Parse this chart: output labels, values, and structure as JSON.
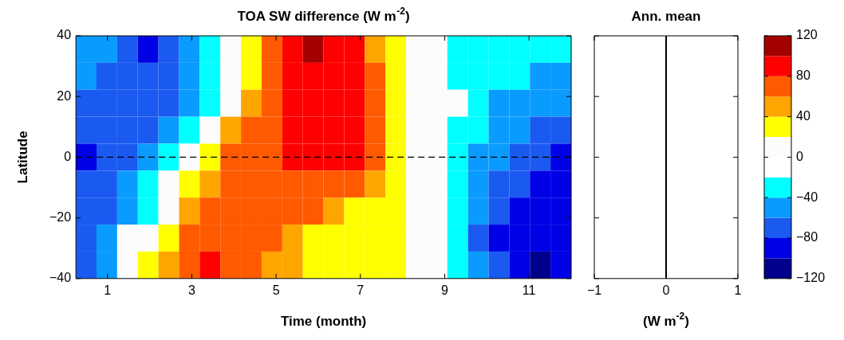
{
  "chart_data": [
    {
      "type": "heatmap",
      "title": "TOA SW difference (W m$^{-2}$)",
      "xlabel": "Time (month)",
      "ylabel": "Latitude",
      "xlim": [
        0.25,
        12
      ],
      "xticks": [
        1,
        3,
        5,
        7,
        9,
        11
      ],
      "ylim": [
        -40,
        40
      ],
      "yticks": [
        {
          "value": -40,
          "label": "−40"
        },
        {
          "value": -20,
          "label": "−20"
        },
        0,
        20,
        40
      ],
      "cells": [
        [
          -50,
          -50,
          -70,
          -90,
          -70,
          -50,
          -30,
          0,
          30,
          70,
          90,
          110,
          90,
          90,
          50,
          30,
          0,
          0,
          -30,
          -30,
          -30,
          -30,
          -30,
          -30
        ],
        [
          -50,
          -70,
          -70,
          -70,
          -70,
          -50,
          -30,
          0,
          30,
          70,
          90,
          90,
          90,
          90,
          70,
          30,
          0,
          0,
          -30,
          -30,
          -30,
          -30,
          -50,
          -50
        ],
        [
          -70,
          -70,
          -70,
          -70,
          -70,
          -50,
          -30,
          0,
          50,
          70,
          90,
          90,
          90,
          90,
          70,
          30,
          0,
          0,
          0,
          -30,
          -50,
          -50,
          -50,
          -50
        ],
        [
          -70,
          -70,
          -70,
          -70,
          -50,
          -30,
          0,
          50,
          70,
          70,
          90,
          90,
          90,
          90,
          70,
          30,
          0,
          0,
          -30,
          -30,
          -50,
          -50,
          -70,
          -70
        ],
        [
          -90,
          -70,
          -70,
          -50,
          -30,
          0,
          30,
          70,
          70,
          70,
          90,
          90,
          90,
          90,
          70,
          30,
          0,
          0,
          -30,
          -50,
          -50,
          -70,
          -70,
          -90
        ],
        [
          -70,
          -70,
          -50,
          -30,
          0,
          30,
          50,
          70,
          70,
          70,
          70,
          70,
          70,
          70,
          50,
          30,
          0,
          0,
          -30,
          -50,
          -70,
          -70,
          -90,
          -90
        ],
        [
          -70,
          -70,
          -50,
          -30,
          0,
          50,
          70,
          70,
          70,
          70,
          70,
          70,
          50,
          30,
          30,
          30,
          0,
          0,
          -30,
          -50,
          -70,
          -90,
          -90,
          -90
        ],
        [
          -70,
          -50,
          0,
          0,
          30,
          70,
          70,
          70,
          70,
          70,
          50,
          30,
          30,
          30,
          30,
          30,
          0,
          0,
          -30,
          -70,
          -90,
          -90,
          -90,
          -90
        ],
        [
          -70,
          -50,
          0,
          30,
          50,
          70,
          90,
          70,
          70,
          50,
          50,
          30,
          30,
          30,
          30,
          30,
          0,
          0,
          -30,
          -50,
          -70,
          -90,
          -110,
          -90
        ]
      ],
      "clim": [
        -120,
        120
      ],
      "cticks": [
        {
          "value": -120,
          "label": "−120"
        },
        {
          "value": -80,
          "label": "−80"
        },
        {
          "value": -40,
          "label": "−40"
        },
        0,
        40,
        80,
        120
      ],
      "colors": [
        "#00008c",
        "#0000e6",
        "#1a5af0",
        "#0a9bff",
        "#00ffff",
        "#ffffff",
        "#fcfcfc",
        "#ffff00",
        "#ffa500",
        "#ff5a00",
        "#ff0000",
        "#a50000"
      ],
      "ref_lines": [
        {
          "axis": "y",
          "value": 0,
          "color": "#000000",
          "line_style": "dashed"
        }
      ]
    },
    {
      "type": "line",
      "title": "Ann. mean",
      "xlabel": "(W m$^{-2}$)",
      "xlim": [
        -1,
        1
      ],
      "xticks": [
        {
          "value": -1,
          "label": "−1"
        },
        0,
        1
      ],
      "ylim": [
        -40,
        40
      ],
      "yticks": [
        -40,
        -20,
        0,
        20,
        40
      ],
      "tick_labels": "x",
      "ref_lines": [
        {
          "axis": "x",
          "value": 0,
          "color": "#000000"
        }
      ]
    }
  ]
}
